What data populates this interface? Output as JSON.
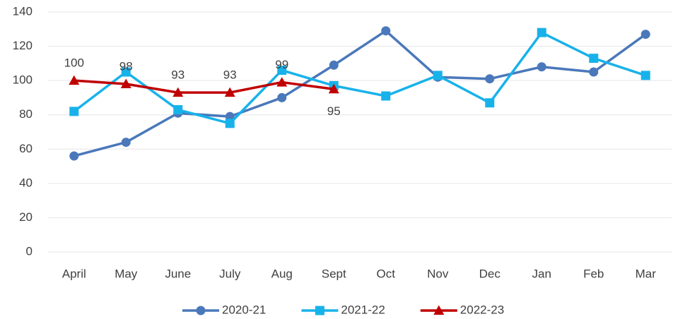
{
  "chart_data": {
    "type": "line",
    "categories": [
      "April",
      "May",
      "June",
      "July",
      "Aug",
      "Sept",
      "Oct",
      "Nov",
      "Dec",
      "Jan",
      "Feb",
      "Mar"
    ],
    "series": [
      {
        "name": "2020-21",
        "color": "#4a78ba",
        "marker": "circle",
        "values": [
          56,
          64,
          81,
          79,
          90,
          109,
          129,
          102,
          101,
          108,
          105,
          127
        ]
      },
      {
        "name": "2021-22",
        "color": "#18b2ea",
        "marker": "square",
        "values": [
          82,
          105,
          83,
          75,
          106,
          97,
          91,
          103,
          87,
          128,
          113,
          103
        ]
      },
      {
        "name": "2022-23",
        "color": "#c00000",
        "marker": "triangle",
        "data_labels": true,
        "values": [
          100,
          98,
          93,
          93,
          99,
          95,
          null,
          null,
          null,
          null,
          null,
          null
        ]
      }
    ],
    "ylim": [
      0,
      140
    ],
    "yticks": [
      0,
      20,
      40,
      60,
      80,
      100,
      120,
      140
    ],
    "grid": true,
    "legend": "bottom"
  }
}
